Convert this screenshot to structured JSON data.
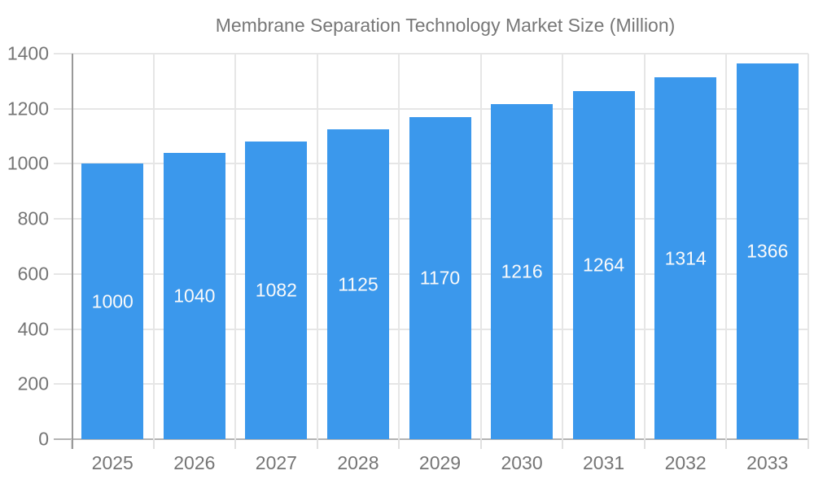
{
  "legend": {
    "label": "Membrane Separation Technology Market Size (Million)"
  },
  "colors": {
    "bar": "#3b98ec",
    "grid": "#e6e6e6",
    "zero_line": "#b3b3b3",
    "y_axis_line": "#999999",
    "axis_label_text": "#757575",
    "legend_text": "#777777",
    "bar_label_text": "#fafafa",
    "background": "#ffffff"
  },
  "chart_data": {
    "type": "bar",
    "title": "Membrane Separation Technology Market Size (Million)",
    "categories": [
      "2025",
      "2026",
      "2027",
      "2028",
      "2029",
      "2030",
      "2031",
      "2032",
      "2033"
    ],
    "values": [
      1000,
      1040,
      1082,
      1125,
      1170,
      1216,
      1264,
      1314,
      1366
    ],
    "xlabel": "",
    "ylabel": "",
    "ylim": [
      0,
      1400
    ],
    "ytick_step": 200,
    "grid": true,
    "legend_position": "top",
    "bar_value_labels_inside": true
  }
}
